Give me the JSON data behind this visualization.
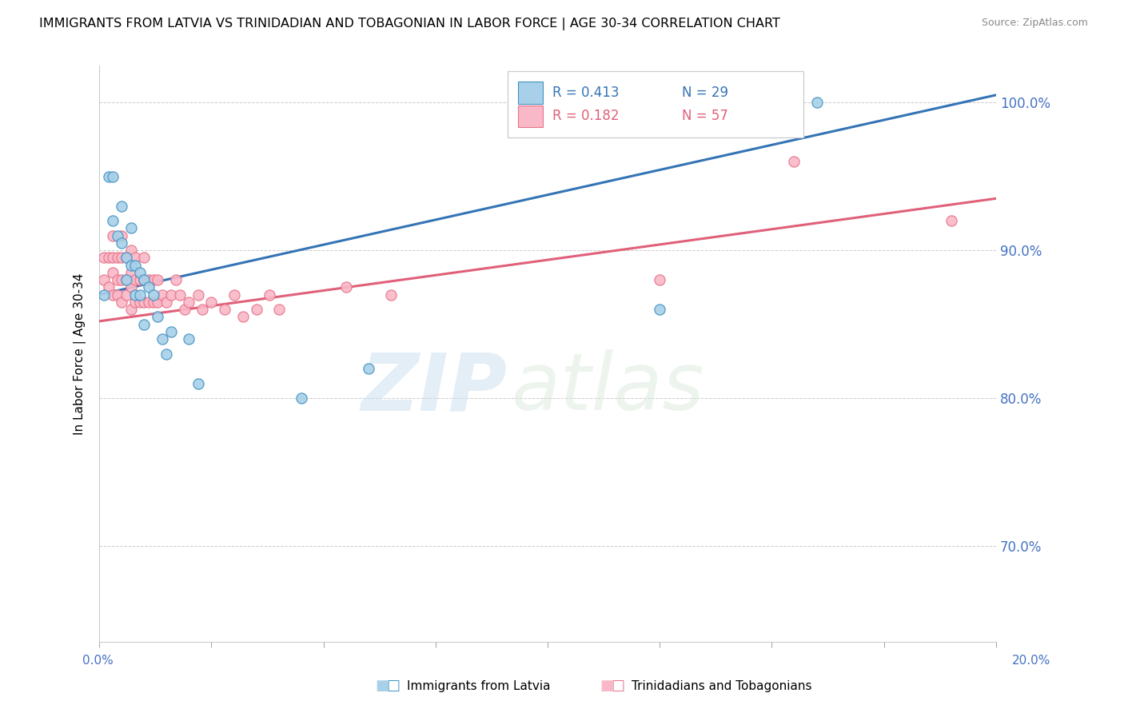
{
  "title": "IMMIGRANTS FROM LATVIA VS TRINIDADIAN AND TOBAGONIAN IN LABOR FORCE | AGE 30-34 CORRELATION CHART",
  "source": "Source: ZipAtlas.com",
  "ylabel": "In Labor Force | Age 30-34",
  "xlim": [
    0.0,
    0.2
  ],
  "ylim": [
    0.635,
    1.025
  ],
  "ytick_positions": [
    0.7,
    0.8,
    0.9,
    1.0
  ],
  "ytick_labels": [
    "70.0%",
    "80.0%",
    "90.0%",
    "100.0%"
  ],
  "xtick_positions": [
    0.0,
    0.025,
    0.05,
    0.075,
    0.1,
    0.125,
    0.15,
    0.175,
    0.2
  ],
  "legend_r_blue": "R = 0.413",
  "legend_n_blue": "N = 29",
  "legend_r_pink": "R = 0.182",
  "legend_n_pink": "N = 57",
  "legend_label_blue": "Immigrants from Latvia",
  "legend_label_pink": "Trinidadians and Tobagonians",
  "color_blue_fill": "#a8d0e8",
  "color_blue_edge": "#4393c3",
  "color_pink_fill": "#f9b8c8",
  "color_pink_edge": "#e8748a",
  "color_line_blue": "#3474b5",
  "color_line_pink": "#e0607a",
  "watermark_zip": "ZIP",
  "watermark_atlas": "atlas",
  "blue_x": [
    0.001,
    0.002,
    0.003,
    0.003,
    0.004,
    0.005,
    0.005,
    0.006,
    0.006,
    0.007,
    0.007,
    0.008,
    0.008,
    0.009,
    0.009,
    0.01,
    0.01,
    0.011,
    0.012,
    0.013,
    0.014,
    0.015,
    0.016,
    0.02,
    0.022,
    0.045,
    0.06,
    0.125,
    0.16
  ],
  "blue_y": [
    0.87,
    0.95,
    0.95,
    0.92,
    0.91,
    0.93,
    0.905,
    0.895,
    0.88,
    0.915,
    0.89,
    0.89,
    0.87,
    0.885,
    0.87,
    0.88,
    0.85,
    0.875,
    0.87,
    0.855,
    0.84,
    0.83,
    0.845,
    0.84,
    0.81,
    0.8,
    0.82,
    0.86,
    1.0
  ],
  "pink_x": [
    0.001,
    0.001,
    0.002,
    0.002,
    0.003,
    0.003,
    0.003,
    0.003,
    0.004,
    0.004,
    0.004,
    0.005,
    0.005,
    0.005,
    0.005,
    0.006,
    0.006,
    0.006,
    0.007,
    0.007,
    0.007,
    0.007,
    0.008,
    0.008,
    0.008,
    0.009,
    0.009,
    0.01,
    0.01,
    0.01,
    0.011,
    0.011,
    0.012,
    0.012,
    0.013,
    0.013,
    0.014,
    0.015,
    0.016,
    0.017,
    0.018,
    0.019,
    0.02,
    0.022,
    0.023,
    0.025,
    0.028,
    0.03,
    0.032,
    0.035,
    0.038,
    0.04,
    0.055,
    0.065,
    0.125,
    0.155,
    0.19
  ],
  "pink_y": [
    0.895,
    0.88,
    0.895,
    0.875,
    0.91,
    0.895,
    0.885,
    0.87,
    0.895,
    0.88,
    0.87,
    0.91,
    0.895,
    0.88,
    0.865,
    0.895,
    0.88,
    0.87,
    0.9,
    0.885,
    0.875,
    0.86,
    0.895,
    0.88,
    0.865,
    0.88,
    0.865,
    0.895,
    0.88,
    0.865,
    0.88,
    0.865,
    0.88,
    0.865,
    0.88,
    0.865,
    0.87,
    0.865,
    0.87,
    0.88,
    0.87,
    0.86,
    0.865,
    0.87,
    0.86,
    0.865,
    0.86,
    0.87,
    0.855,
    0.86,
    0.87,
    0.86,
    0.875,
    0.87,
    0.88,
    0.96,
    0.92
  ]
}
